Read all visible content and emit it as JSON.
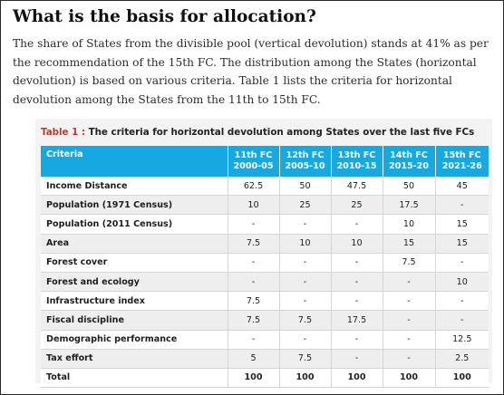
{
  "heading": "What is the basis for allocation?",
  "paragraph": "The share of States from the divisible pool (vertical devolution) stands at 41% as per the recommendation of the 15th FC. The distribution among the States (horizontal devolution) is based on various criteria. Table 1 lists the criteria for horizontal devolution among the States from the 11th to 15th FC.",
  "table": {
    "caption_label": "Table 1 :",
    "caption_text": " The criteria for horizontal devolution among States over the last five FCs",
    "header": {
      "criteria": "Criteria",
      "fcs": [
        {
          "name": "11th FC",
          "years": "2000-05"
        },
        {
          "name": "12th FC",
          "years": "2005-10"
        },
        {
          "name": "13th FC",
          "years": "2010-15"
        },
        {
          "name": "14th FC",
          "years": "2015-20"
        },
        {
          "name": "15th FC",
          "years": "2021-26"
        }
      ]
    },
    "rows": [
      {
        "criteria": "Income Distance",
        "values": [
          "62.5",
          "50",
          "47.5",
          "50",
          "45"
        ]
      },
      {
        "criteria": "Population (1971 Census)",
        "values": [
          "10",
          "25",
          "25",
          "17.5",
          "-"
        ]
      },
      {
        "criteria": "Population (2011 Census)",
        "values": [
          "-",
          "-",
          "-",
          "10",
          "15"
        ]
      },
      {
        "criteria": "Area",
        "values": [
          "7.5",
          "10",
          "10",
          "15",
          "15"
        ]
      },
      {
        "criteria": "Forest cover",
        "values": [
          "-",
          "-",
          "-",
          "7.5",
          "-"
        ]
      },
      {
        "criteria": "Forest and ecology",
        "values": [
          "-",
          "-",
          "-",
          "-",
          "10"
        ]
      },
      {
        "criteria": "Infrastructure index",
        "values": [
          "7.5",
          "-",
          "-",
          "-",
          "-"
        ]
      },
      {
        "criteria": "Fiscal discipline",
        "values": [
          "7.5",
          "7.5",
          "17.5",
          "-",
          "-"
        ]
      },
      {
        "criteria": "Demographic performance",
        "values": [
          "-",
          "-",
          "-",
          "-",
          "12.5"
        ]
      },
      {
        "criteria": "Tax effort",
        "values": [
          "5",
          "7.5",
          "-",
          "-",
          "2.5"
        ]
      },
      {
        "criteria": "Total",
        "values": [
          "100",
          "100",
          "100",
          "100",
          "100"
        ]
      }
    ]
  }
}
